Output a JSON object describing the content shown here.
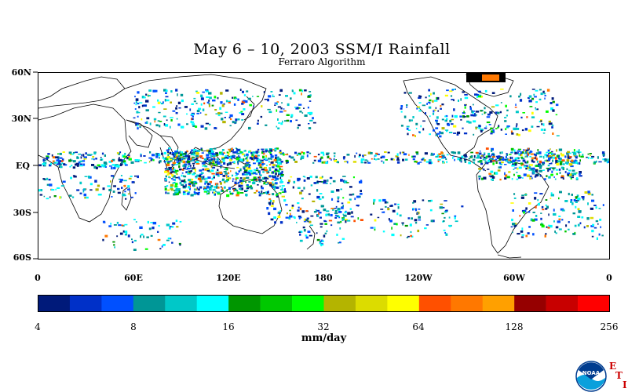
{
  "title": "May 6 – 10, 2003 SSM/I Rainfall",
  "subtitle": "Ferraro Algorithm",
  "map": {
    "lat_labels": [
      "60N",
      "30N",
      "EQ",
      "30S",
      "60S"
    ],
    "lon_labels": [
      "0",
      "60E",
      "120E",
      "180",
      "120W",
      "60W",
      "0"
    ]
  },
  "colorbar": {
    "tick_labels": [
      "4",
      "8",
      "16",
      "32",
      "64",
      "128",
      "256"
    ],
    "units": "mm/day",
    "colors": [
      "#001a7a",
      "#0030c8",
      "#0050ff",
      "#009696",
      "#00c8c8",
      "#00ffff",
      "#009600",
      "#00c800",
      "#00ff00",
      "#b4b400",
      "#dcdc00",
      "#ffff00",
      "#ff5000",
      "#ff7800",
      "#ffa000",
      "#960000",
      "#c80000",
      "#ff0000"
    ]
  },
  "logo": {
    "icon": "noaa-logo-icon",
    "text": "NOAA",
    "letters": [
      "E",
      "T",
      "I"
    ]
  }
}
